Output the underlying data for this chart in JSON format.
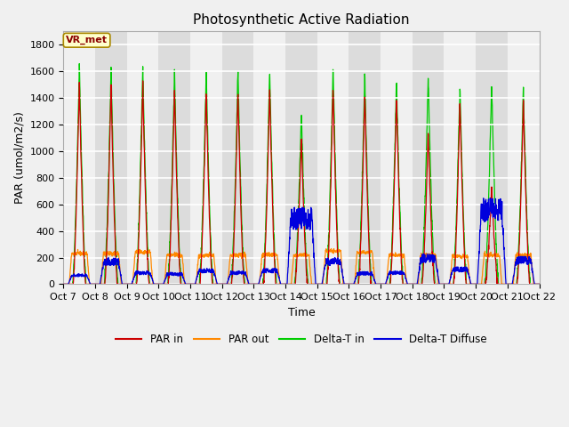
{
  "title": "Photosynthetic Active Radiation",
  "ylabel": "PAR (umol/m2/s)",
  "xlabel": "Time",
  "n_days": 15,
  "ylim": [
    0,
    1900
  ],
  "yticks": [
    0,
    200,
    400,
    600,
    800,
    1000,
    1200,
    1400,
    1600,
    1800
  ],
  "xtick_labels": [
    "Oct 7",
    "Oct 8",
    "Oct 9",
    "Oct 10",
    "Oct 11",
    "Oct 12",
    "Oct 13",
    "Oct 14",
    "Oct 15",
    "Oct 16",
    "Oct 17",
    "Oct 18",
    "Oct 19",
    "Oct 20",
    "Oct 21",
    "Oct 22"
  ],
  "legend_labels": [
    "PAR in",
    "PAR out",
    "Delta-T in",
    "Delta-T Diffuse"
  ],
  "legend_colors": [
    "#cc0000",
    "#ff8800",
    "#00cc00",
    "#0000dd"
  ],
  "annotation_text": "VR_met",
  "annotation_bg": "#ffffcc",
  "annotation_border": "#aa8800",
  "plot_bg_light": "#f0f0f0",
  "plot_bg_dark": "#dcdcdc",
  "fig_bg": "#f0f0f0",
  "grid_color": "#ffffff",
  "title_fontsize": 11,
  "label_fontsize": 9,
  "tick_fontsize": 8,
  "par_in_peaks": [
    1520,
    1500,
    1510,
    1480,
    1460,
    1470,
    1480,
    1100,
    1490,
    1450,
    1430,
    1160,
    1380,
    730,
    1380
  ],
  "par_out_peaks": [
    230,
    230,
    240,
    220,
    215,
    220,
    220,
    220,
    250,
    240,
    220,
    220,
    210,
    220,
    220
  ],
  "delta_t_in_peaks": [
    1650,
    1620,
    1640,
    1600,
    1610,
    1610,
    1620,
    1290,
    1640,
    1560,
    1540,
    1550,
    1500,
    1510,
    1490
  ],
  "delta_t_diff_peaks": [
    80,
    200,
    100,
    90,
    120,
    100,
    120,
    580,
    200,
    95,
    100,
    230,
    130,
    650,
    210
  ],
  "line_width": 0.9
}
